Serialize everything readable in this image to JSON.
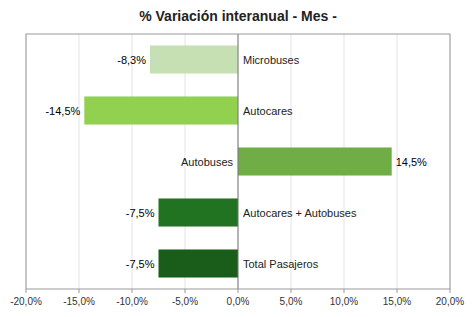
{
  "chart_data": {
    "type": "bar",
    "orientation": "horizontal",
    "title": "% Variación interanual - Mes -",
    "categories": [
      "Microbuses",
      "Autocares",
      "Autobuses",
      "Autocares + Autobuses",
      "Total Pasajeros"
    ],
    "values": [
      -8.3,
      -14.5,
      14.5,
      -7.5,
      -7.5
    ],
    "value_labels": [
      "-8,3%",
      "-14,5%",
      "14,5%",
      "-7,5%",
      "-7,5%"
    ],
    "data_labels": true,
    "colors": [
      "#c6e0b4",
      "#92d050",
      "#70ad47",
      "#217321",
      "#1a5c1a"
    ],
    "xlim": [
      -20,
      20
    ],
    "xticks": [
      {
        "value": -20,
        "label": "-20,0%"
      },
      {
        "value": -15,
        "label": "-15,0%"
      },
      {
        "value": -10,
        "label": "-10,0%"
      },
      {
        "value": -5,
        "label": "-5,0%"
      },
      {
        "value": 0,
        "label": "0,0%"
      },
      {
        "value": 5,
        "label": "5,0%"
      },
      {
        "value": 10,
        "label": "10,0%"
      },
      {
        "value": 15,
        "label": "15,0%"
      },
      {
        "value": 20,
        "label": "20,0%"
      }
    ],
    "grid": true
  }
}
